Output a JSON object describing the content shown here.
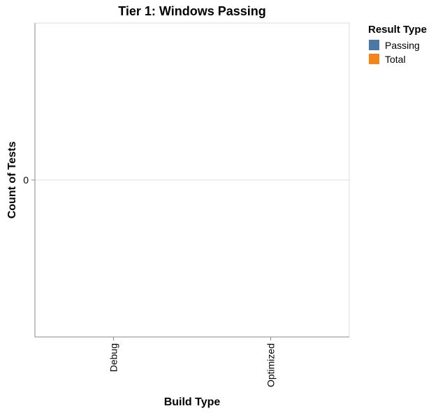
{
  "chart_data": {
    "type": "bar",
    "title": "Tier 1: Windows Passing",
    "xlabel": "Build Type",
    "ylabel": "Count of Tests",
    "categories": [
      "Debug",
      "Optimized"
    ],
    "series": [
      {
        "name": "Passing",
        "color": "#4c78a8",
        "values": [
          0,
          0
        ]
      },
      {
        "name": "Total",
        "color": "#f58518",
        "values": [
          0,
          0
        ]
      }
    ],
    "y_ticks": [
      0
    ],
    "y_tick_labels": [
      "0"
    ],
    "grid": true,
    "legend": {
      "title": "Result Type",
      "placement": "right"
    }
  }
}
